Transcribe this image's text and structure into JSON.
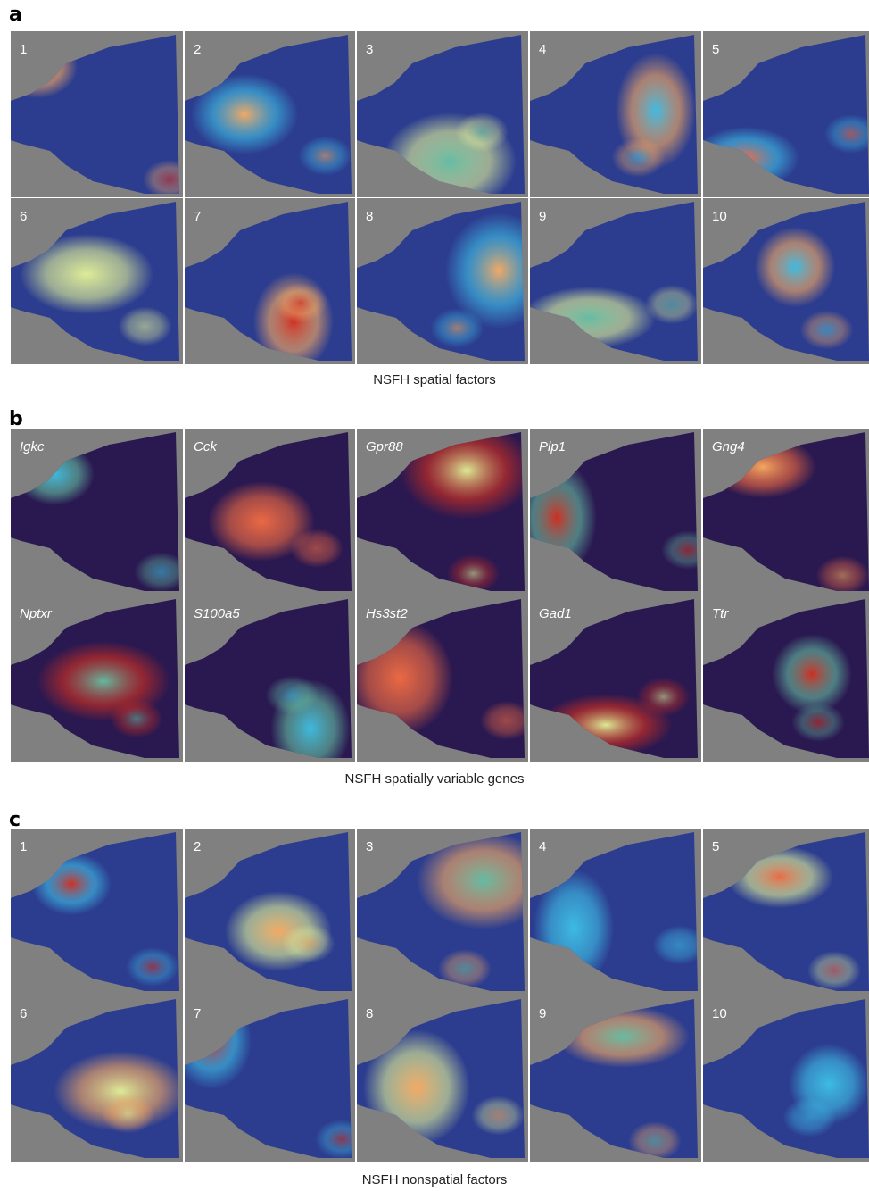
{
  "panels": [
    {
      "label": "a",
      "caption": "NSFH spatial factors",
      "tiles": [
        "1",
        "2",
        "3",
        "4",
        "5",
        "6",
        "7",
        "8",
        "9",
        "10"
      ]
    },
    {
      "label": "b",
      "caption": "NSFH spatially variable genes",
      "tiles": [
        "Igkc",
        "Cck",
        "Gpr88",
        "Plp1",
        "Gng4",
        "Nptxr",
        "S100a5",
        "Hs3st2",
        "Gad1",
        "Ttr"
      ]
    },
    {
      "label": "c",
      "caption": "NSFH nonspatial factors",
      "tiles": [
        "1",
        "2",
        "3",
        "4",
        "5",
        "6",
        "7",
        "8",
        "9",
        "10"
      ]
    }
  ]
}
